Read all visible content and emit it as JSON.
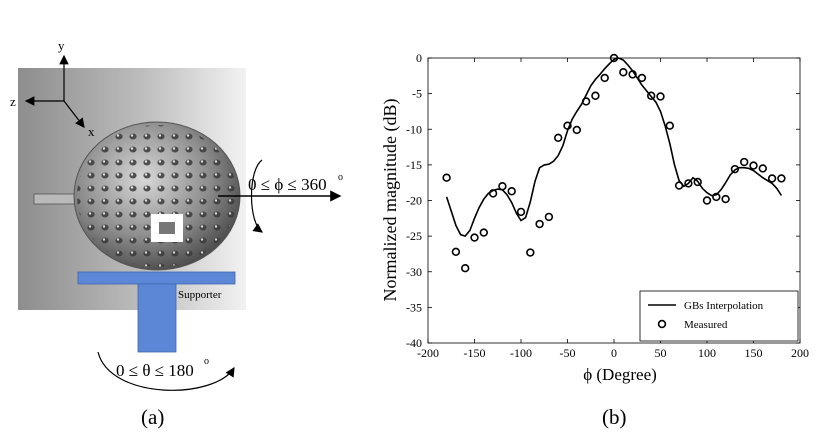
{
  "panel_a": {
    "caption": "(a)",
    "axis_y": "y",
    "axis_z": "z",
    "axis_x": "x",
    "phi_label": "0 ≤ ϕ ≤ 360",
    "phi_degree_mark": "o",
    "theta_label": "0 ≤ θ ≤ 180",
    "theta_degree_mark": "o",
    "supporter_label": "Supporter",
    "colors": {
      "supporter": "#5b87d6",
      "background": "#9e9e9e"
    }
  },
  "panel_b": {
    "caption": "(b)"
  },
  "chart_data": {
    "type": "line",
    "title": "",
    "xlabel": "ϕ (Degree)",
    "ylabel": "Normalized magnitude (dB)",
    "xlim": [
      -200,
      200
    ],
    "ylim": [
      -40,
      0
    ],
    "xticks": [
      -200,
      -150,
      -100,
      -50,
      0,
      50,
      100,
      150,
      200
    ],
    "xtick_labels": [
      "-200",
      "-150",
      "-100",
      "-50",
      "0",
      "50",
      "100",
      "150",
      "200"
    ],
    "yticks": [
      0,
      -5,
      -10,
      -15,
      -20,
      -25,
      -30,
      -35,
      -40
    ],
    "ytick_labels": [
      "0",
      "-5",
      "-10",
      "-15",
      "-20",
      "-25",
      "-30",
      "-35",
      "-40"
    ],
    "grid": false,
    "legend_position": "bottom-right",
    "series": [
      {
        "name": "GBs Interpolation",
        "style": "line",
        "x": [
          -180,
          -175,
          -170,
          -165,
          -160,
          -155,
          -150,
          -145,
          -140,
          -135,
          -130,
          -125,
          -120,
          -115,
          -110,
          -105,
          -100,
          -95,
          -90,
          -85,
          -80,
          -75,
          -70,
          -65,
          -60,
          -55,
          -50,
          -45,
          -40,
          -35,
          -30,
          -25,
          -20,
          -15,
          -10,
          -5,
          0,
          5,
          10,
          15,
          20,
          25,
          30,
          35,
          40,
          45,
          50,
          55,
          60,
          65,
          70,
          75,
          80,
          85,
          90,
          95,
          100,
          105,
          110,
          115,
          120,
          125,
          130,
          135,
          140,
          145,
          150,
          155,
          160,
          165,
          170,
          175,
          180
        ],
        "values": [
          -19.5,
          -21.5,
          -23.5,
          -24.8,
          -25,
          -24.2,
          -22.5,
          -21,
          -19.8,
          -19,
          -18.6,
          -18.4,
          -18.5,
          -19.2,
          -20.3,
          -21.8,
          -22.8,
          -22.4,
          -20.2,
          -17.3,
          -15.4,
          -15,
          -14.9,
          -14.5,
          -13.7,
          -12.3,
          -10.2,
          -8.6,
          -7.5,
          -6.5,
          -5.2,
          -3.9,
          -3,
          -2.3,
          -1.5,
          -0.8,
          -0.2,
          0,
          -0.3,
          -1,
          -1.8,
          -2.8,
          -3.8,
          -4.6,
          -5.4,
          -6.2,
          -7.5,
          -9.5,
          -12,
          -15,
          -17.2,
          -18,
          -17.6,
          -16.8,
          -17.3,
          -18.3,
          -18.9,
          -19.3,
          -19.2,
          -18.5,
          -17.5,
          -16.4,
          -15.7,
          -15.4,
          -15.4,
          -15.5,
          -15.8,
          -16.3,
          -16.8,
          -17.2,
          -17.6,
          -18.3,
          -19.3
        ]
      },
      {
        "name": "Measured",
        "style": "marker",
        "x": [
          -180,
          -170,
          -160,
          -150,
          -140,
          -130,
          -120,
          -110,
          -100,
          -90,
          -80,
          -70,
          -60,
          -50,
          -40,
          -30,
          -20,
          -10,
          0,
          10,
          20,
          30,
          40,
          50,
          60,
          70,
          80,
          90,
          100,
          110,
          120,
          130,
          140,
          150,
          160,
          170,
          180
        ],
        "values": [
          -16.8,
          -27.2,
          -29.5,
          -25.2,
          -24.5,
          -19,
          -18,
          -18.7,
          -21.6,
          -27.3,
          -23.3,
          -22.3,
          -11.2,
          -9.5,
          -10.1,
          -6.1,
          -5.3,
          -2.8,
          0,
          -2,
          -2.3,
          -2.8,
          -5.3,
          -5.4,
          -9.5,
          -17.9,
          -17.6,
          -17.4,
          -20,
          -19.5,
          -19.8,
          -15.6,
          -14.6,
          -15.1,
          -15.5,
          -16.9,
          -16.9
        ]
      }
    ]
  }
}
